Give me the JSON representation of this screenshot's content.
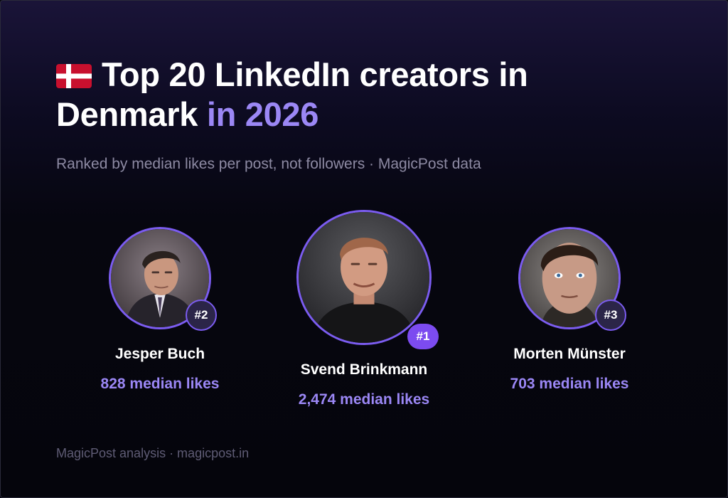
{
  "header": {
    "flag_icon": "denmark-flag-icon",
    "title_main": "Top 20 LinkedIn creators in Denmark",
    "title_accent": "in 2026",
    "subtitle": "Ranked by median likes per post, not followers · MagicPost data"
  },
  "creators": [
    {
      "rank": "#2",
      "name": "Jesper Buch",
      "likes": "828 median likes"
    },
    {
      "rank": "#1",
      "name": "Svend Brinkmann",
      "likes": "2,474 median likes"
    },
    {
      "rank": "#3",
      "name": "Morten Münster",
      "likes": "703 median likes"
    }
  ],
  "footer": {
    "text": "MagicPost analysis · magicpost.in"
  },
  "colors": {
    "accent": "#9b87f5",
    "badge_primary": "#7c4bf0",
    "ring": "#7b5cf0"
  }
}
